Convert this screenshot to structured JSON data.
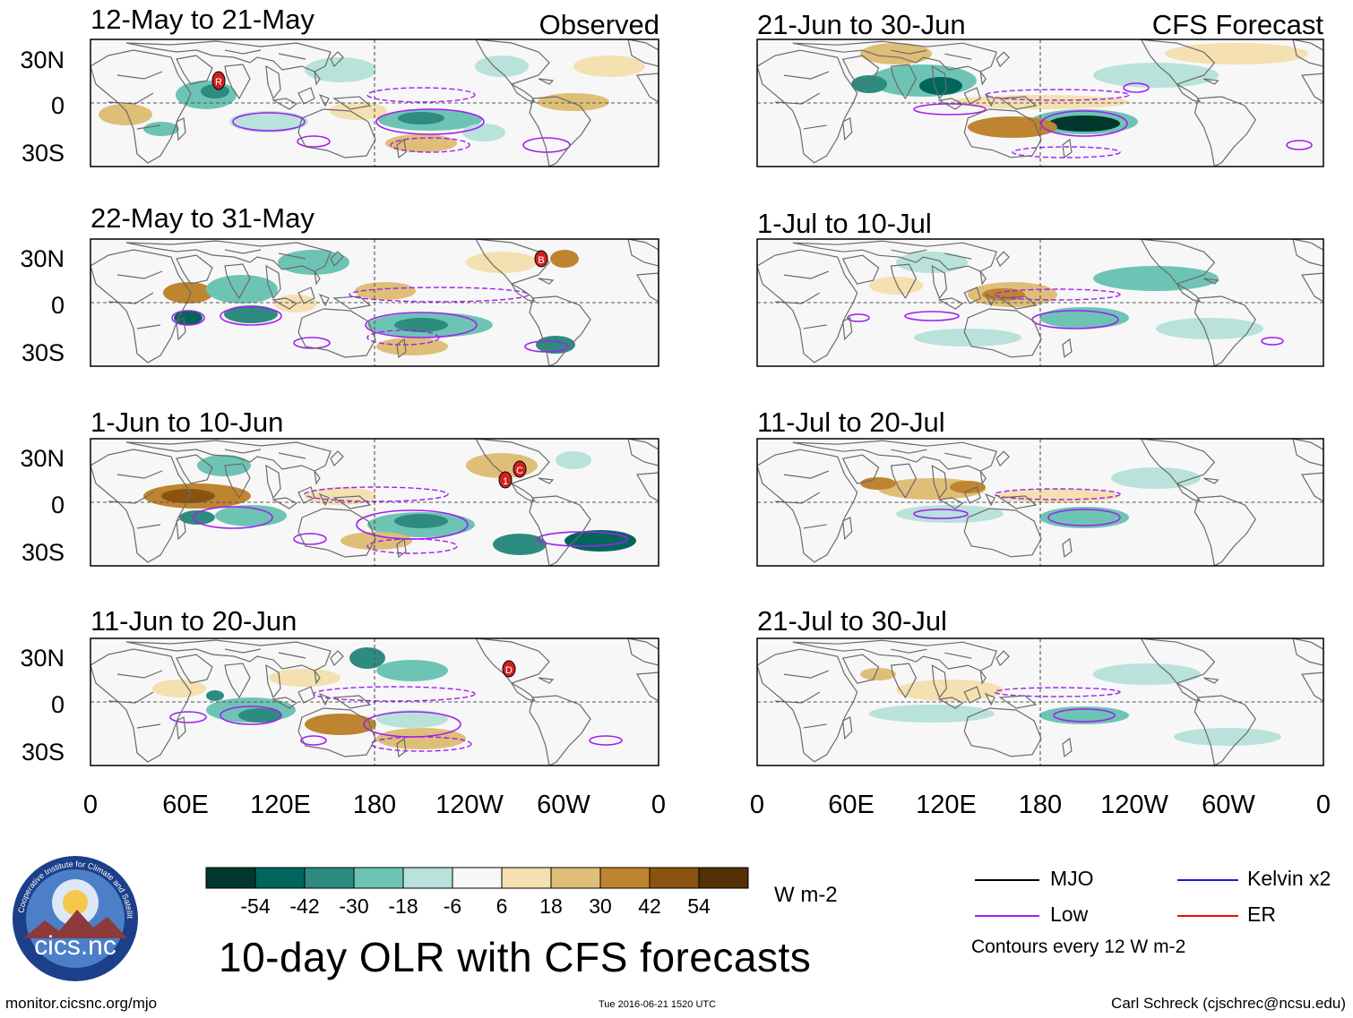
{
  "title": "10-day OLR with CFS forecasts",
  "headers": {
    "observed": "Observed",
    "forecast": "CFS Forecast"
  },
  "panels": {
    "observed": [
      {
        "period": "12-May to 21-May",
        "markers": [
          "R"
        ]
      },
      {
        "period": "22-May to 31-May",
        "markers": [
          "B"
        ]
      },
      {
        "period": "1-Jun to 10-Jun",
        "markers": [
          "1",
          "C"
        ]
      },
      {
        "period": "11-Jun to 20-Jun",
        "markers": [
          "D"
        ]
      }
    ],
    "forecast": [
      {
        "period": "21-Jun to 30-Jun"
      },
      {
        "period": "1-Jul to 10-Jul"
      },
      {
        "period": "11-Jul to 20-Jul"
      },
      {
        "period": "21-Jul to 30-Jul"
      }
    ]
  },
  "axes": {
    "y_ticks": [
      "30N",
      "0",
      "30S"
    ],
    "x_ticks": [
      "0",
      "60E",
      "120E",
      "180",
      "120W",
      "60W",
      "0"
    ]
  },
  "colorbar": {
    "labels": [
      "-54",
      "-42",
      "-30",
      "-18",
      "-6",
      "6",
      "18",
      "30",
      "42",
      "54"
    ],
    "colors": [
      "#00382e",
      "#00665c",
      "#2e8b80",
      "#6ec4b4",
      "#b8e2da",
      "#f7f7f7",
      "#f4e0b0",
      "#dfbe78",
      "#bf8430",
      "#8a5410",
      "#543005"
    ],
    "units": "W m-2"
  },
  "legend": {
    "items": [
      {
        "label": "MJO",
        "color": "#000000"
      },
      {
        "label": "Kelvin x2",
        "color": "#1a1adc"
      },
      {
        "label": "Low",
        "color": "#a020f0"
      },
      {
        "label": "ER",
        "color": "#e01010"
      }
    ],
    "note": "Contours every 12 W m-2"
  },
  "logo": {
    "text": "cics.nc",
    "ring_text": "Cooperative Institute for Climate and Satellites"
  },
  "footer": {
    "url": "monitor.cicsnc.org/mjo",
    "timestamp": "Tue 2016-06-21 1520 UTC",
    "author": "Carl Schreck (cjschrec@ncsu.edu)"
  }
}
